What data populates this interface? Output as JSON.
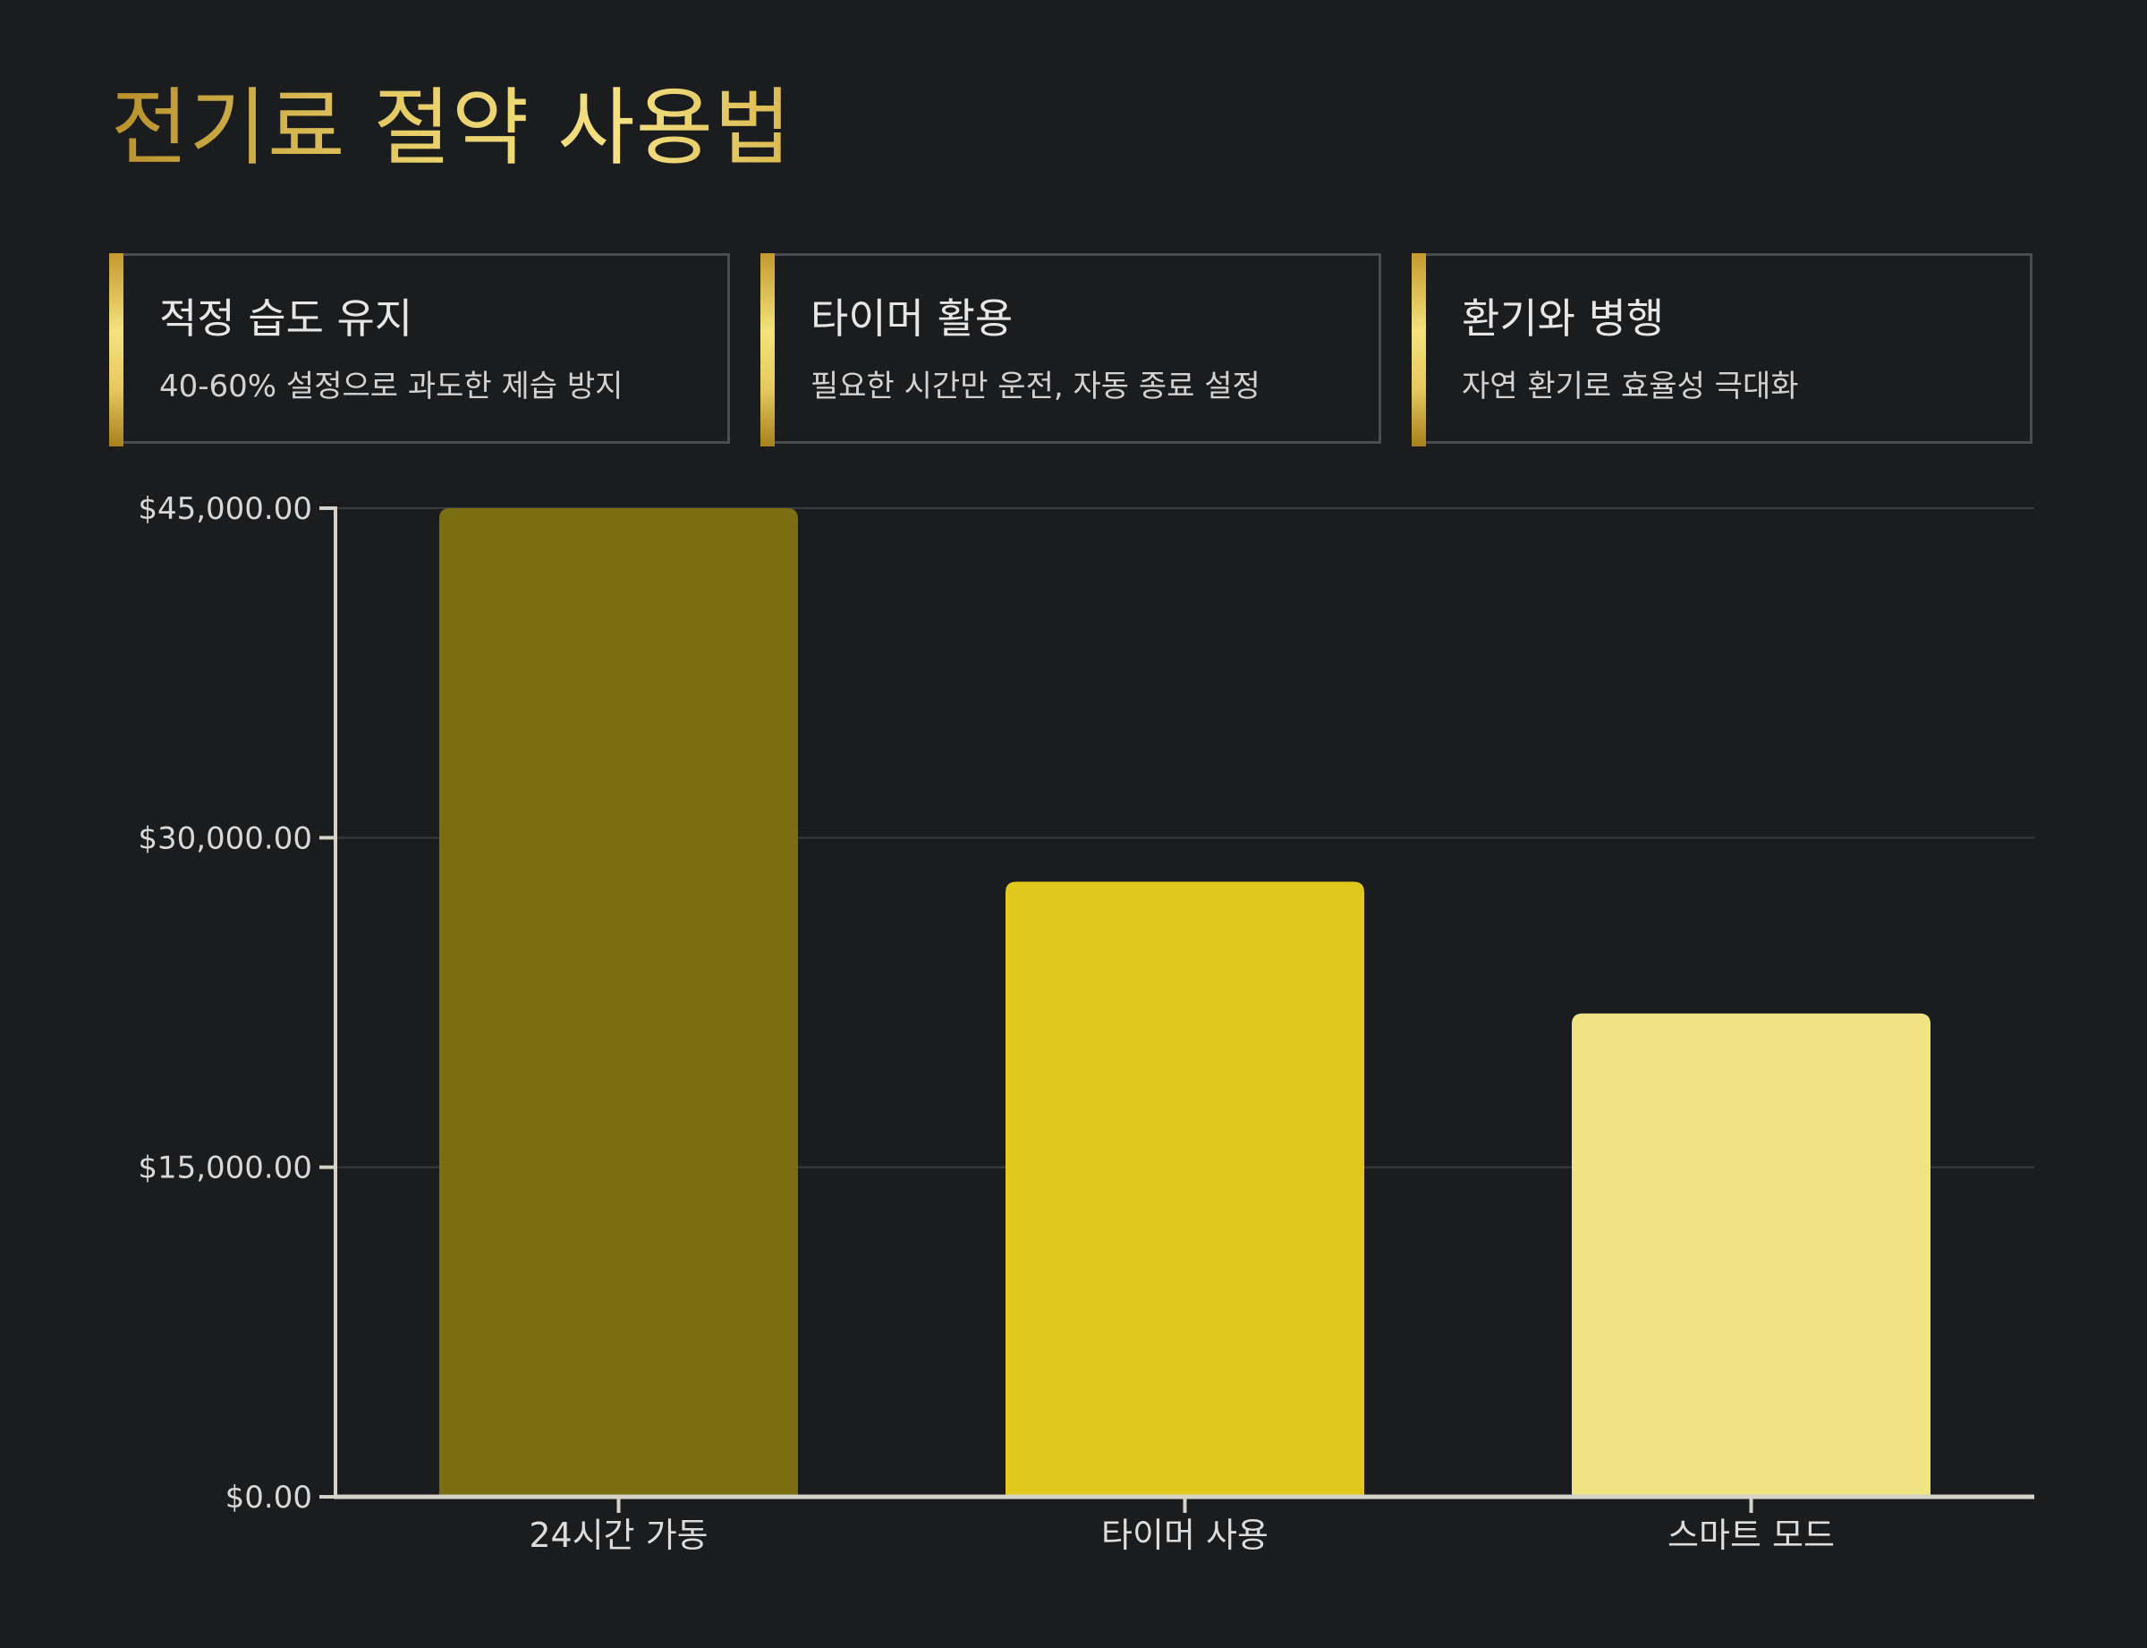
{
  "title": "전기료 절약 사용법",
  "cards": [
    {
      "title": "적정 습도 유지",
      "desc": "40-60% 설정으로 과도한 제습 방지"
    },
    {
      "title": "타이머 활용",
      "desc": "필요한 시간만 운전, 자동 종료 설정"
    },
    {
      "title": "환기와 병행",
      "desc": "자연 환기로 효율성 극대화"
    }
  ],
  "colors": {
    "background": "#1b1c1e",
    "bars": [
      "#7b6d12",
      "#e0c91c",
      "#f0e384"
    ],
    "grid": "#3a3b3d",
    "axis": "#d6d2c8"
  },
  "chart_data": {
    "type": "bar",
    "categories": [
      "24시간 가동",
      "타이머 사용",
      "스마트 모드"
    ],
    "values": [
      45000,
      28000,
      22000
    ],
    "ylim": [
      0,
      45000
    ],
    "yticks": [
      0,
      15000,
      30000,
      45000
    ],
    "ytick_labels": [
      "$0.00",
      "$15,000.00",
      "$30,000.00",
      "$45,000.00"
    ],
    "grid": true,
    "legend": "none"
  }
}
